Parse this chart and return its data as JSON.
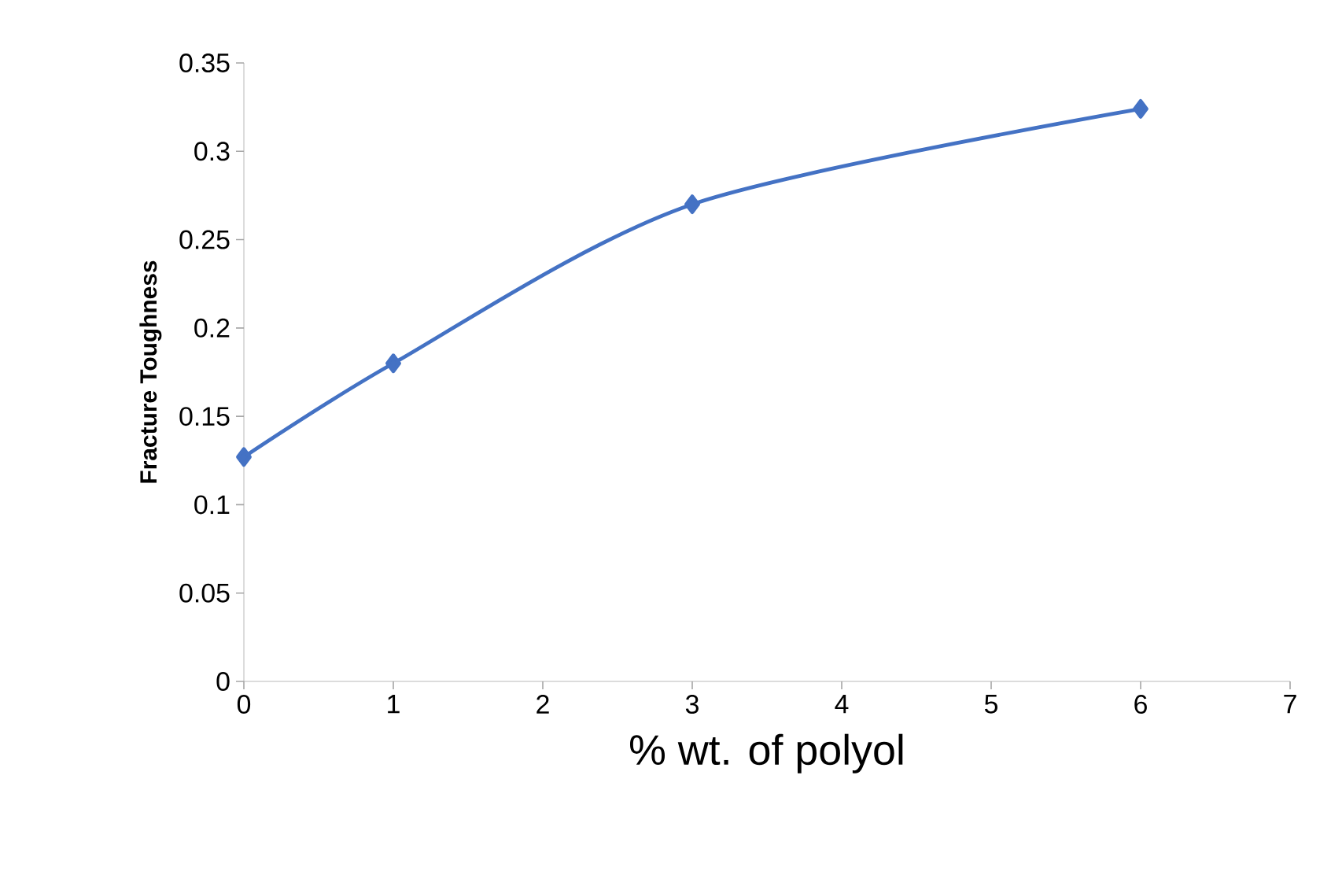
{
  "chart_data": {
    "type": "line",
    "xlabel": "% wt. of polyol",
    "ylabel": "Fracture Toughness",
    "x": [
      0,
      1,
      3,
      6
    ],
    "series": [
      {
        "color": "#4472c4",
        "values": [
          0.127,
          0.18,
          0.27,
          0.324
        ]
      }
    ],
    "xlim": [
      0,
      7
    ],
    "ylim": [
      0,
      0.35
    ],
    "xticks": [
      0,
      1,
      2,
      3,
      4,
      5,
      6,
      7
    ],
    "yticks": [
      0,
      0.05,
      0.1,
      0.15,
      0.2,
      0.25,
      0.3,
      0.35
    ],
    "grid": false,
    "marker": "diamond",
    "line_style": "solid"
  }
}
